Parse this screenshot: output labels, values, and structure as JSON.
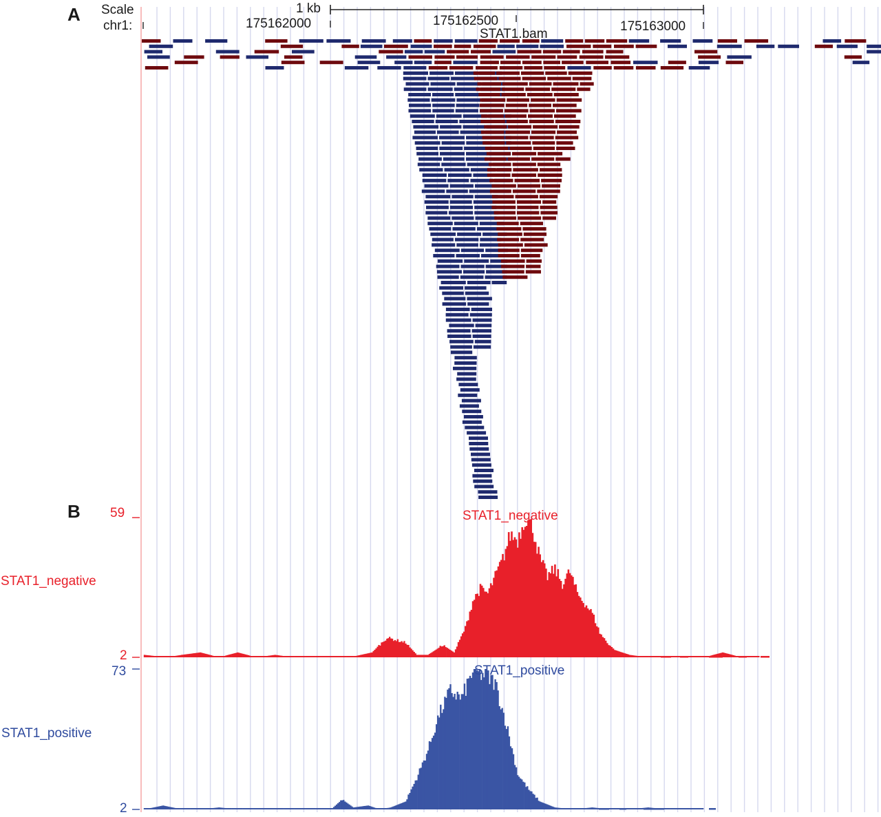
{
  "panels": {
    "a": "A",
    "b": "B"
  },
  "ruler": {
    "scale_label": "Scale",
    "chrom_label": "chr1:",
    "scale_bar_label": "1 kb",
    "ticks": [
      "175162000",
      "175162500",
      "175163000"
    ]
  },
  "colors": {
    "negative": "#e8202a",
    "positive": "#3a55a4",
    "read_forward": "#1f2a6e",
    "read_reverse": "#6e0a0e",
    "grid": "#d6d8ee",
    "left_edge": "#f4a0a0"
  },
  "chart_data": [
    {
      "type": "table",
      "title": "STAT1.bam",
      "description_track": "alignment reads pileup",
      "x_range": [
        175161493,
        175163476
      ],
      "strands": [
        "forward (blue)",
        "reverse (dark red)"
      ]
    },
    {
      "type": "area",
      "title": "STAT1_negative",
      "track_label": "STAT1_negative",
      "ylim": [
        2,
        59
      ],
      "ytick_labels": [
        "59",
        "2"
      ],
      "x_range": [
        175161493,
        175163476
      ],
      "x": [
        175161500,
        175161560,
        175161600,
        175161650,
        175161700,
        175161750,
        175161800,
        175161850,
        175161900,
        175161950,
        175162000,
        175162050,
        175162080,
        175162110,
        175162150,
        175162200,
        175162230,
        175162260,
        175162300,
        175162330,
        175162360,
        175162380,
        175162400,
        175162420,
        175162440,
        175162460,
        175162480,
        175162500,
        175162520,
        175162540,
        175162560,
        175162580,
        175162600,
        175162620,
        175162640,
        175162660,
        175162680,
        175162700,
        175162720,
        175162740,
        175162760,
        175162780,
        175162800,
        175162850,
        175162900,
        175162950,
        175163000,
        175163050,
        175163100,
        175163150
      ],
      "values": [
        3,
        2,
        3,
        4,
        2,
        4,
        2,
        3,
        2,
        2,
        2,
        2,
        3,
        4,
        10,
        8,
        3,
        3,
        7,
        4,
        14,
        25,
        30,
        28,
        35,
        42,
        52,
        50,
        59,
        55,
        42,
        35,
        38,
        32,
        37,
        28,
        24,
        20,
        12,
        8,
        5,
        4,
        3,
        2,
        2,
        2,
        2,
        4,
        2,
        2
      ]
    },
    {
      "type": "area",
      "title": "STAT1_positive",
      "track_label": "STAT1_positive",
      "ylim": [
        2,
        73
      ],
      "ytick_labels": [
        "73",
        "2"
      ],
      "x_range": [
        175161493,
        175163476
      ],
      "x": [
        175161500,
        175161550,
        175161600,
        175161650,
        175161700,
        175161750,
        175161800,
        175161850,
        175161900,
        175161950,
        175162000,
        175162030,
        175162060,
        175162100,
        175162130,
        175162160,
        175162200,
        175162230,
        175162260,
        175162290,
        175162320,
        175162350,
        175162380,
        175162410,
        175162440,
        175162470,
        175162500,
        175162530,
        175162560,
        175162600,
        175162650,
        175162700,
        175162750,
        175162800,
        175162850,
        175162900,
        175162950,
        175163000
      ],
      "values": [
        2,
        4,
        2,
        2,
        3,
        2,
        2,
        2,
        2,
        2,
        2,
        7,
        3,
        4,
        2,
        3,
        6,
        18,
        32,
        50,
        62,
        58,
        72,
        70,
        66,
        45,
        20,
        12,
        6,
        3,
        2,
        3,
        2,
        2,
        3,
        2,
        2,
        2
      ]
    }
  ]
}
